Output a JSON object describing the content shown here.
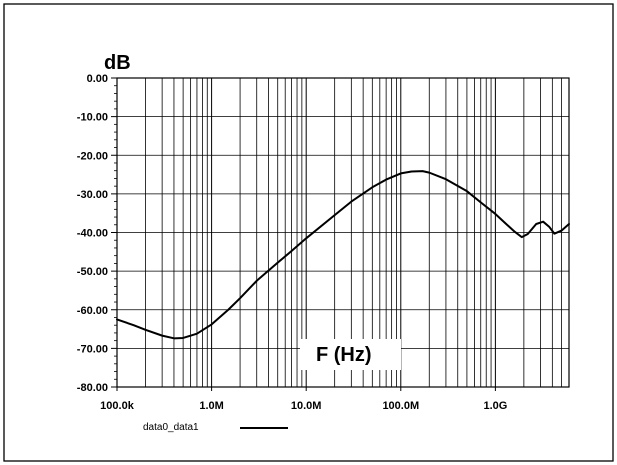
{
  "chart_data": {
    "type": "line",
    "ylabel": "dB",
    "xlabel": "F (Hz)",
    "x_scale": "log",
    "xlim": [
      100000,
      6000000000
    ],
    "ylim": [
      -80,
      0
    ],
    "grid": true,
    "x_major_ticks": [
      {
        "value": 100000,
        "label": "100.0k"
      },
      {
        "value": 1000000,
        "label": "1.0M"
      },
      {
        "value": 10000000,
        "label": "10.0M"
      },
      {
        "value": 100000000,
        "label": "100.0M"
      },
      {
        "value": 1000000000,
        "label": "1.0G"
      }
    ],
    "y_ticks": [
      {
        "value": 0,
        "label": "0.00"
      },
      {
        "value": -10,
        "label": "-10.00"
      },
      {
        "value": -20,
        "label": "-20.00"
      },
      {
        "value": -30,
        "label": "-30.00"
      },
      {
        "value": -40,
        "label": "-40.00"
      },
      {
        "value": -50,
        "label": "-50.00"
      },
      {
        "value": -60,
        "label": "-60.00"
      },
      {
        "value": -70,
        "label": "-70.00"
      },
      {
        "value": -80,
        "label": "-80.00"
      }
    ],
    "legend": {
      "placement": "bottom-left"
    },
    "series": [
      {
        "name": "data0_data1",
        "color": "#000000",
        "x": [
          100000,
          150000,
          200000,
          300000,
          400000,
          500000,
          700000,
          1000000,
          1500000,
          2000000,
          3000000,
          5000000,
          7000000,
          10000000,
          20000000,
          30000000,
          50000000,
          70000000,
          100000000,
          130000000,
          170000000,
          200000000,
          300000000,
          500000000,
          700000000,
          1000000000,
          1300000000,
          1600000000,
          1900000000,
          2200000000,
          2700000000,
          3200000000,
          3700000000,
          4200000000,
          5000000000,
          6000000000
        ],
        "y": [
          -62.5,
          -64,
          -65.2,
          -66.7,
          -67.4,
          -67.3,
          -66.2,
          -63.8,
          -60,
          -57,
          -52.5,
          -47.8,
          -44.8,
          -41.5,
          -35.5,
          -32,
          -28.3,
          -26.3,
          -24.7,
          -24.2,
          -24.1,
          -24.5,
          -26.2,
          -29.3,
          -32.2,
          -35.2,
          -37.8,
          -39.8,
          -41.2,
          -40.4,
          -37.8,
          -37.2,
          -38.5,
          -40.3,
          -39.5,
          -37.8
        ]
      }
    ]
  }
}
